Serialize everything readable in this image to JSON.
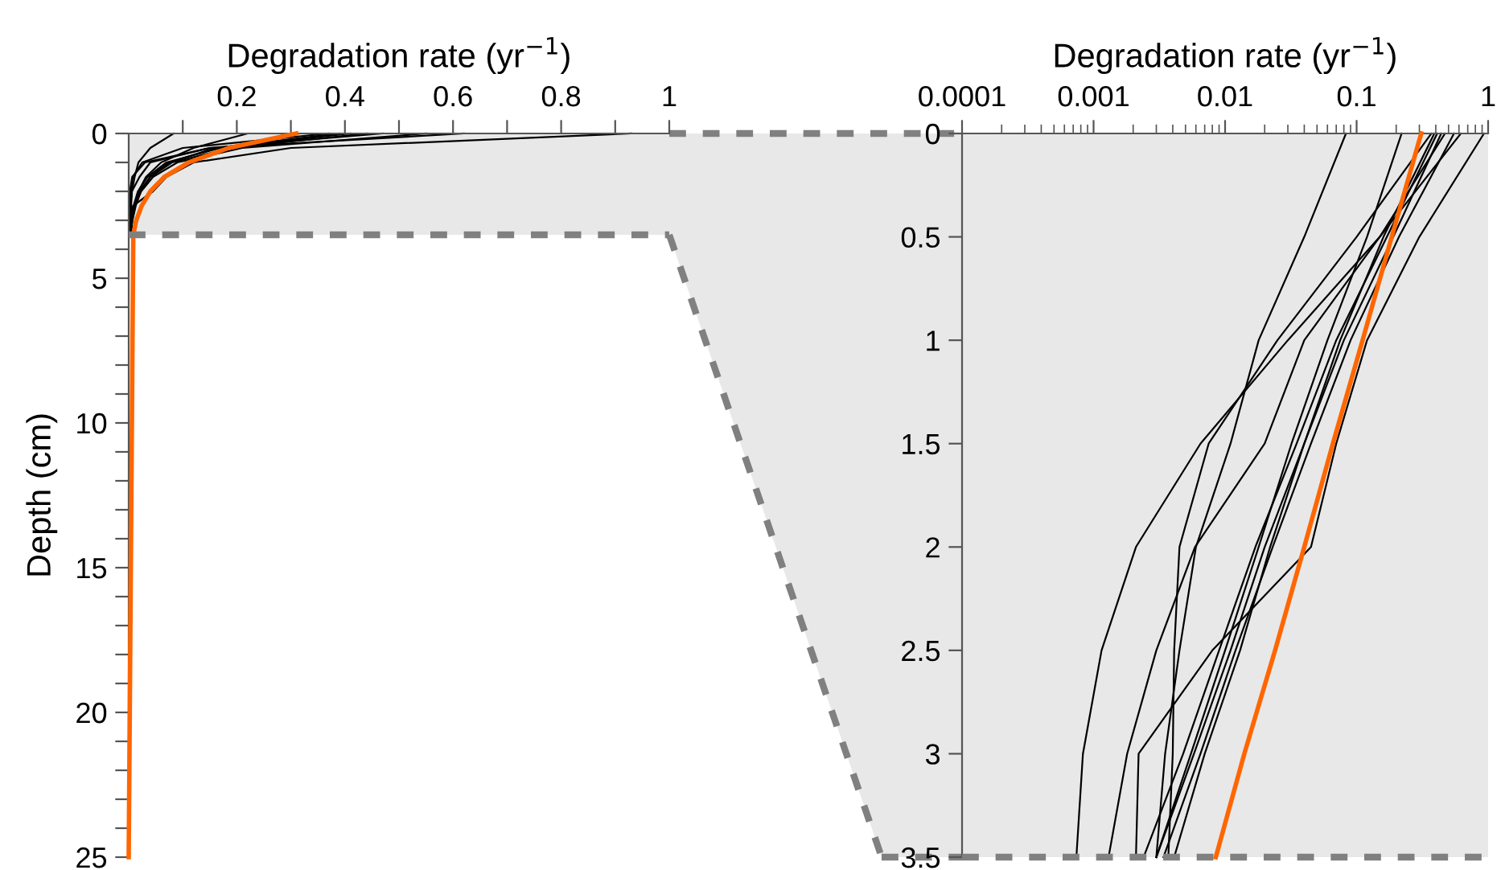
{
  "chart_data": [
    {
      "type": "line",
      "xlabel": "Degradation rate (yr$^{−1}$)",
      "ylabel": "Depth (cm)",
      "xlim": [
        0,
        1
      ],
      "xticks": [
        {
          "value": 0.1,
          "label": null
        },
        0.2,
        {
          "value": 0.3,
          "label": null
        },
        0.4,
        {
          "value": 0.5,
          "label": null
        },
        0.6,
        {
          "value": 0.7,
          "label": null
        },
        0.8,
        {
          "value": 0.9,
          "label": null
        },
        1
      ],
      "ylim": [
        25,
        0
      ],
      "yticks": [
        0,
        {
          "value": 1,
          "label": null
        },
        {
          "value": 2,
          "label": null
        },
        {
          "value": 3,
          "label": null
        },
        {
          "value": 4,
          "label": null
        },
        5,
        {
          "value": 6,
          "label": null
        },
        {
          "value": 7,
          "label": null
        },
        {
          "value": 8,
          "label": null
        },
        {
          "value": 9,
          "label": null
        },
        10,
        {
          "value": 11,
          "label": null
        },
        {
          "value": 12,
          "label": null
        },
        {
          "value": 13,
          "label": null
        },
        {
          "value": 14,
          "label": null
        },
        15,
        {
          "value": 16,
          "label": null
        },
        {
          "value": 17,
          "label": null
        },
        {
          "value": 18,
          "label": null
        },
        {
          "value": 19,
          "label": null
        },
        20,
        {
          "value": 21,
          "label": null
        },
        {
          "value": 22,
          "label": null
        },
        {
          "value": 23,
          "label": null
        },
        {
          "value": 24,
          "label": null
        },
        25
      ],
      "grid": false,
      "bands": [
        {
          "axis": "y",
          "from": 0,
          "to": 3.5,
          "color": "#e8e8e8"
        }
      ],
      "ref_lines": [
        {
          "axis": "y",
          "value": 3.5,
          "color": "#808080",
          "line_style": "dashed"
        }
      ],
      "series": [
        {
          "color": "#000000",
          "x": [
            0.083,
            0.04,
            0.018,
            0.011,
            0.006,
            0.0045,
            0.0035,
            0.003
          ],
          "values": [
            0,
            0.5,
            1,
            1.5,
            2,
            2.5,
            3,
            3.5
          ]
        },
        {
          "color": "#000000",
          "x": [
            0.47,
            0.15,
            0.03,
            0.0065,
            0.0021,
            0.00115,
            0.00083,
            0.00074
          ],
          "values": [
            0,
            0.5,
            1,
            1.5,
            2,
            2.5,
            3,
            3.5
          ]
        },
        {
          "color": "#000000",
          "x": [
            0.62,
            0.15,
            0.04,
            0.02,
            0.0059,
            0.003,
            0.0018,
            0.0013
          ],
          "values": [
            0,
            0.5,
            1,
            1.5,
            2,
            2.5,
            3,
            3.5
          ]
        },
        {
          "color": "#000000",
          "x": [
            0.93,
            0.3,
            0.12,
            0.07,
            0.045,
            0.008,
            0.0022,
            0.0021
          ],
          "values": [
            0,
            0.5,
            1,
            1.5,
            2,
            2.5,
            3,
            3.5
          ]
        },
        {
          "color": "#000000",
          "x": [
            0.37,
            0.1,
            0.025,
            0.0075,
            0.0045,
            0.0041,
            0.004,
            0.0037
          ],
          "values": [
            0,
            0.5,
            1,
            1.5,
            2,
            2.5,
            3,
            3.5
          ]
        },
        {
          "color": "#000000",
          "x": [
            0.41,
            0.17,
            0.07,
            0.035,
            0.017,
            0.009,
            0.0048,
            0.0024
          ],
          "values": [
            0,
            0.5,
            1,
            1.5,
            2,
            2.5,
            3,
            3.5
          ]
        },
        {
          "color": "#000000",
          "x": [
            0.44,
            0.19,
            0.08,
            0.04,
            0.02,
            0.011,
            0.0058,
            0.003
          ],
          "values": [
            0,
            0.5,
            1,
            1.5,
            2,
            2.5,
            3,
            3.5
          ]
        },
        {
          "color": "#000000",
          "x": [
            0.55,
            0.21,
            0.09,
            0.045,
            0.023,
            0.012,
            0.0065,
            0.0034
          ],
          "values": [
            0,
            0.5,
            1,
            1.5,
            2,
            2.5,
            3,
            3.5
          ]
        },
        {
          "color": "#000000",
          "x": [
            0.39,
            0.16,
            0.075,
            0.04,
            0.022,
            0.013,
            0.007,
            0.0041
          ],
          "values": [
            0,
            0.5,
            1,
            1.5,
            2,
            2.5,
            3,
            3.5
          ]
        },
        {
          "color": "#000000",
          "x": [
            0.22,
            0.12,
            0.06,
            0.032,
            0.018,
            0.01,
            0.0055,
            0.003
          ],
          "values": [
            0,
            0.5,
            1,
            1.5,
            2,
            2.5,
            3,
            3.5
          ]
        },
        {
          "color": "#ff6600",
          "x": [
            0.31,
            0.185,
            0.111,
            0.066,
            0.04,
            0.024,
            0.014,
            0.0085,
            0
          ],
          "values": [
            0,
            0.5,
            1,
            1.5,
            2,
            2.5,
            3,
            3.5,
            25
          ]
        }
      ]
    },
    {
      "type": "line",
      "xlabel": "Degradation rate (yr$^{−1}$)",
      "log": "x",
      "xlim": [
        0.0001,
        1
      ],
      "xticks": [
        0.0001,
        0.001,
        0.01,
        0.1,
        1
      ],
      "ylim": [
        3.5,
        0
      ],
      "yticks": [
        0,
        0.5,
        1,
        1.5,
        2,
        2.5,
        3,
        3.5
      ],
      "grid": false,
      "bands": [
        {
          "axis": "y",
          "from": 0,
          "to": 3.5,
          "color": "#e8e8e8"
        }
      ],
      "ref_lines": [
        {
          "axis": "y",
          "value": 3.5,
          "color": "#808080",
          "line_style": "dashed"
        }
      ],
      "series": [
        {
          "color": "#000000",
          "x": [
            0.083,
            0.04,
            0.018,
            0.011,
            0.006,
            0.0045,
            0.0035,
            0.003
          ],
          "values": [
            0,
            0.5,
            1,
            1.5,
            2,
            2.5,
            3,
            3.5
          ]
        },
        {
          "color": "#000000",
          "x": [
            0.47,
            0.15,
            0.03,
            0.0065,
            0.0021,
            0.00115,
            0.00083,
            0.00074
          ],
          "values": [
            0,
            0.5,
            1,
            1.5,
            2,
            2.5,
            3,
            3.5
          ]
        },
        {
          "color": "#000000",
          "x": [
            0.62,
            0.15,
            0.04,
            0.02,
            0.0059,
            0.003,
            0.0018,
            0.0013
          ],
          "values": [
            0,
            0.5,
            1,
            1.5,
            2,
            2.5,
            3,
            3.5
          ]
        },
        {
          "color": "#000000",
          "x": [
            0.93,
            0.3,
            0.12,
            0.07,
            0.045,
            0.008,
            0.0022,
            0.0021
          ],
          "values": [
            0,
            0.5,
            1,
            1.5,
            2,
            2.5,
            3,
            3.5
          ]
        },
        {
          "color": "#000000",
          "x": [
            0.37,
            0.1,
            0.025,
            0.0075,
            0.0045,
            0.0041,
            0.004,
            0.0037
          ],
          "values": [
            0,
            0.5,
            1,
            1.5,
            2,
            2.5,
            3,
            3.5
          ]
        },
        {
          "color": "#000000",
          "x": [
            0.41,
            0.17,
            0.07,
            0.035,
            0.017,
            0.009,
            0.0048,
            0.0024
          ],
          "values": [
            0,
            0.5,
            1,
            1.5,
            2,
            2.5,
            3,
            3.5
          ]
        },
        {
          "color": "#000000",
          "x": [
            0.44,
            0.19,
            0.08,
            0.04,
            0.02,
            0.011,
            0.0058,
            0.003
          ],
          "values": [
            0,
            0.5,
            1,
            1.5,
            2,
            2.5,
            3,
            3.5
          ]
        },
        {
          "color": "#000000",
          "x": [
            0.55,
            0.21,
            0.09,
            0.045,
            0.023,
            0.012,
            0.0065,
            0.0034
          ],
          "values": [
            0,
            0.5,
            1,
            1.5,
            2,
            2.5,
            3,
            3.5
          ]
        },
        {
          "color": "#000000",
          "x": [
            0.39,
            0.16,
            0.075,
            0.04,
            0.022,
            0.013,
            0.007,
            0.0041
          ],
          "values": [
            0,
            0.5,
            1,
            1.5,
            2,
            2.5,
            3,
            3.5
          ]
        },
        {
          "color": "#000000",
          "x": [
            0.22,
            0.12,
            0.06,
            0.032,
            0.018,
            0.01,
            0.0055,
            0.003
          ],
          "values": [
            0,
            0.5,
            1,
            1.5,
            2,
            2.5,
            3,
            3.5
          ]
        },
        {
          "color": "#ff6600",
          "x": [
            0.31,
            0.185,
            0.111,
            0.066,
            0.04,
            0.024,
            0.014,
            0.0085
          ],
          "values": [
            0,
            0.5,
            1,
            1.5,
            2,
            2.5,
            3,
            3.5
          ]
        }
      ]
    }
  ]
}
